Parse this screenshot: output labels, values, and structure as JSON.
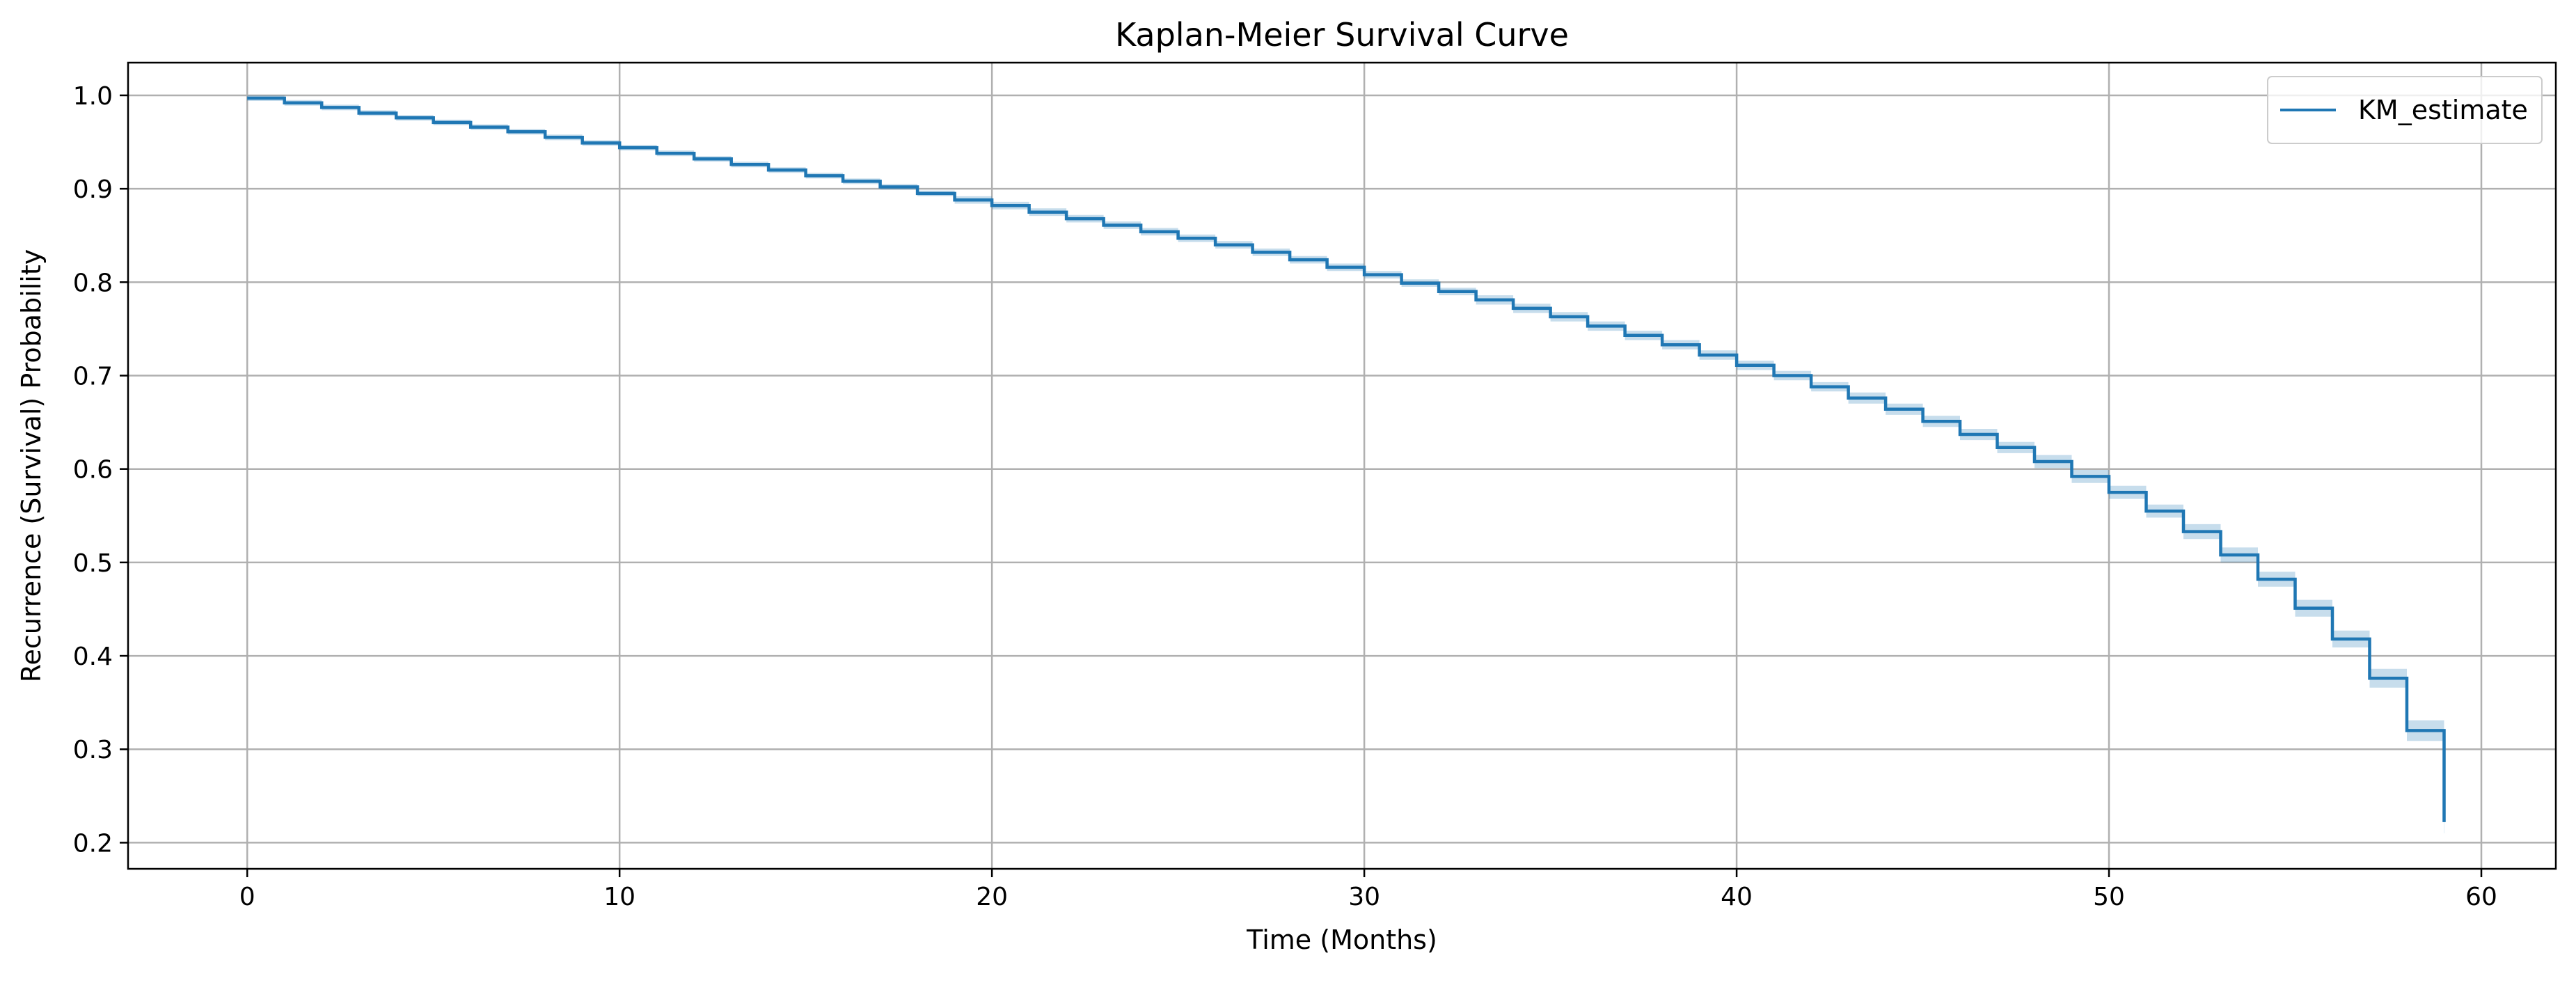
{
  "chart_data": {
    "type": "line",
    "title": "Kaplan-Meier Survival Curve",
    "xlabel": "Time (Months)",
    "ylabel": "Recurrence (Survival) Probability",
    "xlim": [
      -3.2,
      62.0
    ],
    "ylim": [
      0.172,
      1.035
    ],
    "xticks": [
      0,
      10,
      20,
      30,
      40,
      50,
      60
    ],
    "yticks": [
      0.2,
      0.3,
      0.4,
      0.5,
      0.6,
      0.7,
      0.8,
      0.9,
      1.0
    ],
    "xtick_labels": [
      "0",
      "10",
      "20",
      "30",
      "40",
      "50",
      "60"
    ],
    "ytick_labels": [
      "0.2",
      "0.3",
      "0.4",
      "0.5",
      "0.6",
      "0.7",
      "0.8",
      "0.9",
      "1.0"
    ],
    "grid": true,
    "legend_position": "top-right",
    "colors": {
      "line": "#1f77b4",
      "ci_band": "#1f77b4",
      "grid": "#b0b0b0",
      "axes": "#000000"
    },
    "series": [
      {
        "name": "KM_estimate",
        "step": "post",
        "x": [
          0,
          1,
          2,
          3,
          4,
          5,
          6,
          7,
          8,
          9,
          10,
          11,
          12,
          13,
          14,
          15,
          16,
          17,
          18,
          19,
          20,
          21,
          22,
          23,
          24,
          25,
          26,
          27,
          28,
          29,
          30,
          31,
          32,
          33,
          34,
          35,
          36,
          37,
          38,
          39,
          40,
          41,
          42,
          43,
          44,
          45,
          46,
          47,
          48,
          49,
          50,
          51,
          52,
          53,
          54,
          55,
          56,
          57,
          58,
          59
        ],
        "y": [
          0.997,
          0.992,
          0.987,
          0.981,
          0.976,
          0.971,
          0.966,
          0.961,
          0.955,
          0.949,
          0.944,
          0.938,
          0.932,
          0.926,
          0.92,
          0.914,
          0.908,
          0.902,
          0.895,
          0.888,
          0.882,
          0.875,
          0.868,
          0.861,
          0.854,
          0.847,
          0.84,
          0.832,
          0.824,
          0.816,
          0.808,
          0.799,
          0.79,
          0.781,
          0.772,
          0.763,
          0.753,
          0.743,
          0.733,
          0.722,
          0.711,
          0.7,
          0.688,
          0.676,
          0.664,
          0.651,
          0.637,
          0.623,
          0.608,
          0.592,
          0.575,
          0.555,
          0.533,
          0.508,
          0.482,
          0.451,
          0.418,
          0.376,
          0.32,
          0.222
        ],
        "ci_half_width": [
          0.003,
          0.003,
          0.003,
          0.003,
          0.003,
          0.003,
          0.003,
          0.003,
          0.003,
          0.003,
          0.003,
          0.003,
          0.003,
          0.003,
          0.003,
          0.003,
          0.003,
          0.003,
          0.003,
          0.004,
          0.004,
          0.004,
          0.004,
          0.004,
          0.004,
          0.004,
          0.004,
          0.004,
          0.004,
          0.004,
          0.004,
          0.004,
          0.004,
          0.005,
          0.005,
          0.005,
          0.005,
          0.005,
          0.005,
          0.005,
          0.005,
          0.005,
          0.005,
          0.006,
          0.006,
          0.006,
          0.006,
          0.006,
          0.007,
          0.007,
          0.007,
          0.007,
          0.008,
          0.008,
          0.008,
          0.009,
          0.009,
          0.01,
          0.011,
          0.012
        ]
      }
    ]
  }
}
